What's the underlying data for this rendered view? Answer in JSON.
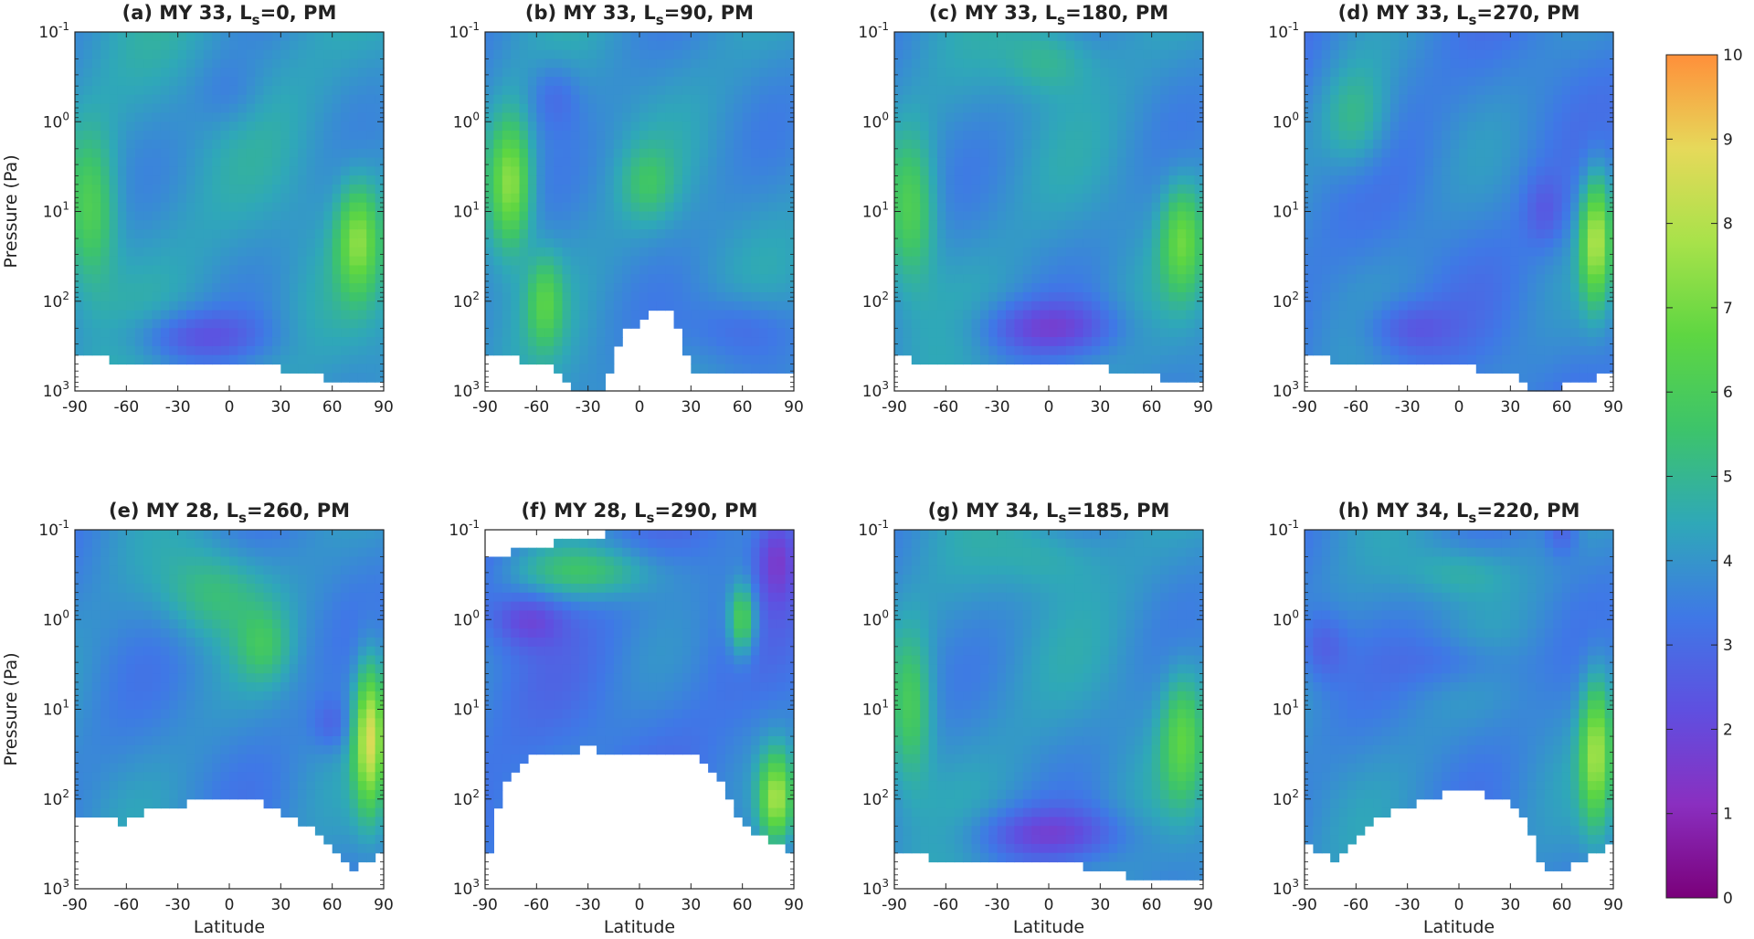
{
  "figure": {
    "colorbar": {
      "min": 0,
      "max": 10,
      "ticks": [
        "0",
        "1",
        "2",
        "3",
        "4",
        "5",
        "6",
        "7",
        "8",
        "9",
        "10"
      ],
      "colormap": [
        "#7a007a",
        "#8a2fc0",
        "#5f4fe0",
        "#3f78e6",
        "#2fa8b8",
        "#3dc46a",
        "#5ed642",
        "#a8e24a",
        "#e6d95a",
        "#ff8f3a"
      ]
    },
    "colors": {
      "axis": "#222222",
      "missing": "#ffffff"
    }
  },
  "chart_data": [
    {
      "type": "heatmap",
      "title": "(a) MY 33, L",
      "title_sub": "s",
      "title_rest": "=0, PM",
      "ylabel": "Pressure (Pa)",
      "xlabel": "",
      "xlim": [
        -90,
        90
      ],
      "ylim": [
        1000,
        0.1
      ],
      "yscale": "log",
      "xticks": [
        "-90",
        "-60",
        "-30",
        "0",
        "30",
        "60",
        "90"
      ],
      "ytick_base": "10",
      "yticks_exp": [
        "-1",
        "0",
        "1",
        "2",
        "3"
      ],
      "base_value": 4.2,
      "features": [
        {
          "lat": -80,
          "p": 10,
          "amp": 2.0,
          "wlat": 14,
          "wp": 0.8
        },
        {
          "lat": 75,
          "p": 20,
          "amp": 2.8,
          "wlat": 12,
          "wp": 0.6
        },
        {
          "lat": -20,
          "p": 250,
          "amp": -1.6,
          "wlat": 40,
          "wp": 0.3
        },
        {
          "lat": 0,
          "p": 0.5,
          "amp": -0.6,
          "wlat": 20,
          "wp": 0.4
        }
      ],
      "bottom_edge": [
        [
          -90,
          350
        ],
        [
          -60,
          500
        ],
        [
          -30,
          520
        ],
        [
          0,
          520
        ],
        [
          30,
          550
        ],
        [
          60,
          750
        ],
        [
          90,
          850
        ]
      ]
    },
    {
      "type": "heatmap",
      "title": "(b) MY 33, L",
      "title_sub": "s",
      "title_rest": "=90, PM",
      "ylabel": "",
      "xlabel": "",
      "xlim": [
        -90,
        90
      ],
      "ylim": [
        1000,
        0.1
      ],
      "yscale": "log",
      "xticks": [
        "-90",
        "-60",
        "-30",
        "0",
        "30",
        "60",
        "90"
      ],
      "ytick_base": "10",
      "yticks_exp": [
        "-1",
        "0",
        "1",
        "2",
        "3"
      ],
      "base_value": 4.0,
      "features": [
        {
          "lat": -75,
          "p": 5,
          "amp": 3.5,
          "wlat": 12,
          "wp": 0.7
        },
        {
          "lat": -55,
          "p": 100,
          "amp": 2.0,
          "wlat": 10,
          "wp": 0.5
        },
        {
          "lat": 5,
          "p": 5,
          "amp": 1.2,
          "wlat": 15,
          "wp": 0.4
        },
        {
          "lat": 60,
          "p": 200,
          "amp": -1.2,
          "wlat": 30,
          "wp": 0.4
        },
        {
          "lat": -50,
          "p": 0.5,
          "amp": -1.0,
          "wlat": 15,
          "wp": 0.4
        }
      ],
      "bottom_edge": [
        [
          -90,
          400
        ],
        [
          -50,
          500
        ],
        [
          -40,
          1000
        ],
        [
          -20,
          1000
        ],
        [
          -10,
          200
        ],
        [
          0,
          180
        ],
        [
          10,
          120
        ],
        [
          20,
          120
        ],
        [
          25,
          300
        ],
        [
          30,
          600
        ],
        [
          90,
          700
        ]
      ]
    },
    {
      "type": "heatmap",
      "title": "(c) MY 33, L",
      "title_sub": "s",
      "title_rest": "=180, PM",
      "ylabel": "",
      "xlabel": "",
      "xlim": [
        -90,
        90
      ],
      "ylim": [
        1000,
        0.1
      ],
      "yscale": "log",
      "xticks": [
        "-90",
        "-60",
        "-30",
        "0",
        "30",
        "60",
        "90"
      ],
      "ytick_base": "10",
      "yticks_exp": [
        "-1",
        "0",
        "1",
        "2",
        "3"
      ],
      "base_value": 4.0,
      "features": [
        {
          "lat": -80,
          "p": 10,
          "amp": 2.2,
          "wlat": 14,
          "wp": 0.8
        },
        {
          "lat": 78,
          "p": 20,
          "amp": 2.5,
          "wlat": 12,
          "wp": 0.6
        },
        {
          "lat": 0,
          "p": 200,
          "amp": -1.8,
          "wlat": 40,
          "wp": 0.3
        },
        {
          "lat": 0,
          "p": 0.2,
          "amp": 1.2,
          "wlat": 25,
          "wp": 0.4
        }
      ],
      "bottom_edge": [
        [
          -90,
          400
        ],
        [
          -60,
          550
        ],
        [
          -30,
          500
        ],
        [
          0,
          480
        ],
        [
          30,
          550
        ],
        [
          60,
          700
        ],
        [
          90,
          800
        ]
      ]
    },
    {
      "type": "heatmap",
      "title": "(d) MY 33, L",
      "title_sub": "s",
      "title_rest": "=270, PM",
      "ylabel": "",
      "xlabel": "",
      "xlim": [
        -90,
        90
      ],
      "ylim": [
        1000,
        0.1
      ],
      "yscale": "log",
      "xticks": [
        "-90",
        "-60",
        "-30",
        "0",
        "30",
        "60",
        "90"
      ],
      "ytick_base": "10",
      "yticks_exp": [
        "-1",
        "0",
        "1",
        "2",
        "3"
      ],
      "base_value": 3.6,
      "features": [
        {
          "lat": 80,
          "p": 20,
          "amp": 4.0,
          "wlat": 9,
          "wp": 0.7
        },
        {
          "lat": -60,
          "p": 1,
          "amp": 1.5,
          "wlat": 20,
          "wp": 0.6
        },
        {
          "lat": 50,
          "p": 10,
          "amp": -1.0,
          "wlat": 12,
          "wp": 0.4
        },
        {
          "lat": -30,
          "p": 200,
          "amp": -1.2,
          "wlat": 25,
          "wp": 0.3
        }
      ],
      "bottom_edge": [
        [
          -90,
          400
        ],
        [
          -60,
          500
        ],
        [
          -30,
          520
        ],
        [
          0,
          550
        ],
        [
          30,
          600
        ],
        [
          40,
          1000
        ],
        [
          60,
          900
        ],
        [
          90,
          600
        ]
      ]
    },
    {
      "type": "heatmap",
      "title": "(e) MY 28, L",
      "title_sub": "s",
      "title_rest": "=260, PM",
      "ylabel": "Pressure (Pa)",
      "xlabel": "Latitude",
      "xlim": [
        -90,
        90
      ],
      "ylim": [
        1000,
        0.1
      ],
      "yscale": "log",
      "xticks": [
        "-90",
        "-60",
        "-30",
        "0",
        "30",
        "60",
        "90"
      ],
      "ytick_base": "10",
      "yticks_exp": [
        "-1",
        "0",
        "1",
        "2",
        "3"
      ],
      "base_value": 3.8,
      "features": [
        {
          "lat": 82,
          "p": 20,
          "amp": 4.5,
          "wlat": 9,
          "wp": 0.8
        },
        {
          "lat": -10,
          "p": 0.5,
          "amp": 1.6,
          "wlat": 30,
          "wp": 0.5
        },
        {
          "lat": 20,
          "p": 2,
          "amp": 1.3,
          "wlat": 15,
          "wp": 0.4
        },
        {
          "lat": 60,
          "p": 15,
          "amp": -1.0,
          "wlat": 12,
          "wp": 0.3
        }
      ],
      "bottom_edge": [
        [
          -90,
          160
        ],
        [
          -60,
          180
        ],
        [
          -40,
          120
        ],
        [
          -20,
          110
        ],
        [
          0,
          110
        ],
        [
          20,
          110
        ],
        [
          30,
          150
        ],
        [
          50,
          200
        ],
        [
          60,
          400
        ],
        [
          70,
          600
        ],
        [
          80,
          550
        ],
        [
          90,
          400
        ]
      ]
    },
    {
      "type": "heatmap",
      "title": "(f) MY 28, L",
      "title_sub": "s",
      "title_rest": "=290, PM",
      "ylabel": "",
      "xlabel": "Latitude",
      "xlim": [
        -90,
        90
      ],
      "ylim": [
        1000,
        0.1
      ],
      "yscale": "log",
      "xticks": [
        "-90",
        "-60",
        "-30",
        "0",
        "30",
        "60",
        "90"
      ],
      "ytick_base": "10",
      "yticks_exp": [
        "-1",
        "0",
        "1",
        "2",
        "3"
      ],
      "base_value": 3.4,
      "features": [
        {
          "lat": -65,
          "p": 1,
          "amp": -1.5,
          "wlat": 20,
          "wp": 0.3
        },
        {
          "lat": 80,
          "p": 0.2,
          "amp": -1.8,
          "wlat": 12,
          "wp": 0.5
        },
        {
          "lat": 60,
          "p": 1,
          "amp": 3.0,
          "wlat": 8,
          "wp": 0.4
        },
        {
          "lat": 80,
          "p": 100,
          "amp": 4.0,
          "wlat": 10,
          "wp": 0.5
        },
        {
          "lat": -30,
          "p": 0.3,
          "amp": 2.0,
          "wlat": 40,
          "wp": 0.3
        }
      ],
      "top_edge": [
        [
          -90,
          0.2
        ],
        [
          -30,
          0.12
        ],
        [
          0,
          0.1
        ],
        [
          90,
          0.1
        ]
      ],
      "bottom_edge": [
        [
          -90,
          600
        ],
        [
          -80,
          80
        ],
        [
          -60,
          30
        ],
        [
          -30,
          28
        ],
        [
          0,
          30
        ],
        [
          30,
          32
        ],
        [
          45,
          50
        ],
        [
          60,
          200
        ],
        [
          75,
          300
        ],
        [
          90,
          400
        ]
      ]
    },
    {
      "type": "heatmap",
      "title": "(g) MY 34, L",
      "title_sub": "s",
      "title_rest": "=185, PM",
      "ylabel": "",
      "xlabel": "Latitude",
      "xlim": [
        -90,
        90
      ],
      "ylim": [
        1000,
        0.1
      ],
      "yscale": "log",
      "xticks": [
        "-90",
        "-60",
        "-30",
        "0",
        "30",
        "60",
        "90"
      ],
      "ytick_base": "10",
      "yticks_exp": [
        "-1",
        "0",
        "1",
        "2",
        "3"
      ],
      "base_value": 4.0,
      "features": [
        {
          "lat": -80,
          "p": 10,
          "amp": 2.0,
          "wlat": 12,
          "wp": 0.8
        },
        {
          "lat": 78,
          "p": 20,
          "amp": 2.2,
          "wlat": 12,
          "wp": 0.7
        },
        {
          "lat": 0,
          "p": 250,
          "amp": -1.8,
          "wlat": 45,
          "wp": 0.3
        },
        {
          "lat": 0,
          "p": 0.2,
          "amp": 0.8,
          "wlat": 30,
          "wp": 0.4
        }
      ],
      "bottom_edge": [
        [
          -90,
          350
        ],
        [
          -60,
          500
        ],
        [
          -30,
          480
        ],
        [
          0,
          500
        ],
        [
          30,
          600
        ],
        [
          60,
          800
        ],
        [
          90,
          800
        ]
      ]
    },
    {
      "type": "heatmap",
      "title": "(h) MY 34, L",
      "title_sub": "s",
      "title_rest": "=220, PM",
      "ylabel": "",
      "xlabel": "Latitude",
      "xlim": [
        -90,
        90
      ],
      "ylim": [
        1000,
        0.1
      ],
      "yscale": "log",
      "xticks": [
        "-90",
        "-60",
        "-30",
        "0",
        "30",
        "60",
        "90"
      ],
      "ytick_base": "10",
      "yticks_exp": [
        "-1",
        "0",
        "1",
        "2",
        "3"
      ],
      "base_value": 3.8,
      "features": [
        {
          "lat": 80,
          "p": 30,
          "amp": 3.5,
          "wlat": 9,
          "wp": 0.8
        },
        {
          "lat": -80,
          "p": 2,
          "amp": -1.2,
          "wlat": 14,
          "wp": 0.4
        },
        {
          "lat": 0,
          "p": 3,
          "amp": -0.8,
          "wlat": 35,
          "wp": 0.3
        },
        {
          "lat": 60,
          "p": 0.1,
          "amp": -1.2,
          "wlat": 10,
          "wp": 0.3
        },
        {
          "lat": 0,
          "p": 0.3,
          "amp": 1.0,
          "wlat": 30,
          "wp": 0.3
        }
      ],
      "bottom_edge": [
        [
          -90,
          300
        ],
        [
          -70,
          500
        ],
        [
          -60,
          250
        ],
        [
          -50,
          180
        ],
        [
          -30,
          120
        ],
        [
          0,
          80
        ],
        [
          30,
          100
        ],
        [
          40,
          200
        ],
        [
          50,
          600
        ],
        [
          60,
          700
        ],
        [
          70,
          500
        ],
        [
          90,
          300
        ]
      ]
    }
  ]
}
